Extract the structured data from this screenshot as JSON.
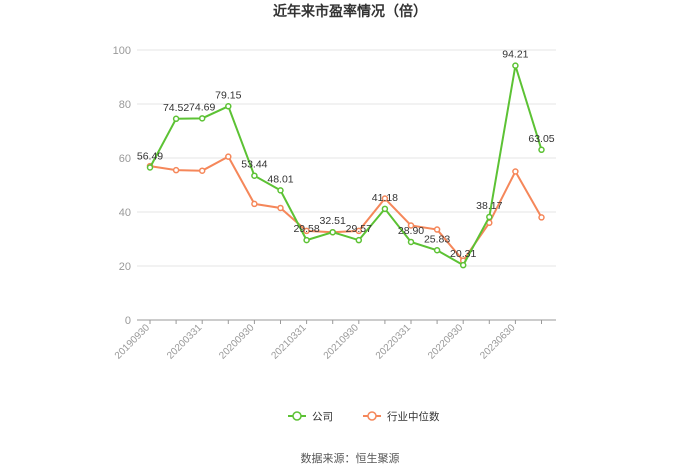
{
  "chart_data": {
    "type": "line",
    "title": "近年来市盈率情况（倍）",
    "categories": [
      "20190930",
      null,
      "20200331",
      null,
      "20200930",
      null,
      "20210331",
      null,
      "20210930",
      null,
      "20220331",
      null,
      "20220930",
      null,
      "20230630",
      null
    ],
    "series": [
      {
        "name": "公司",
        "color": "#5cc234",
        "values": [
          56.49,
          74.52,
          74.69,
          79.15,
          53.44,
          48.01,
          29.58,
          32.51,
          29.57,
          41.18,
          28.9,
          25.83,
          20.31,
          38.17,
          94.21,
          63.05
        ],
        "value_labels": [
          "56.49",
          "74.52",
          "74.69",
          "79.15",
          "53.44",
          "48.01",
          "29.58",
          "32.51",
          "29.57",
          "41.18",
          "28.90",
          "25.83",
          "20.31",
          "38.17",
          "94.21",
          "63.05"
        ]
      },
      {
        "name": "行业中位数",
        "color": "#f5875a",
        "values": [
          57,
          55.5,
          55.3,
          60.5,
          43,
          41.5,
          33,
          32.5,
          33,
          45,
          35,
          33.5,
          22,
          36,
          55,
          38
        ]
      }
    ],
    "ylim": [
      0,
      100
    ],
    "yticks": [
      0,
      20,
      40,
      60,
      80,
      100
    ],
    "grid": true,
    "legend": "bottom",
    "source": "数据来源：恒生聚源"
  }
}
